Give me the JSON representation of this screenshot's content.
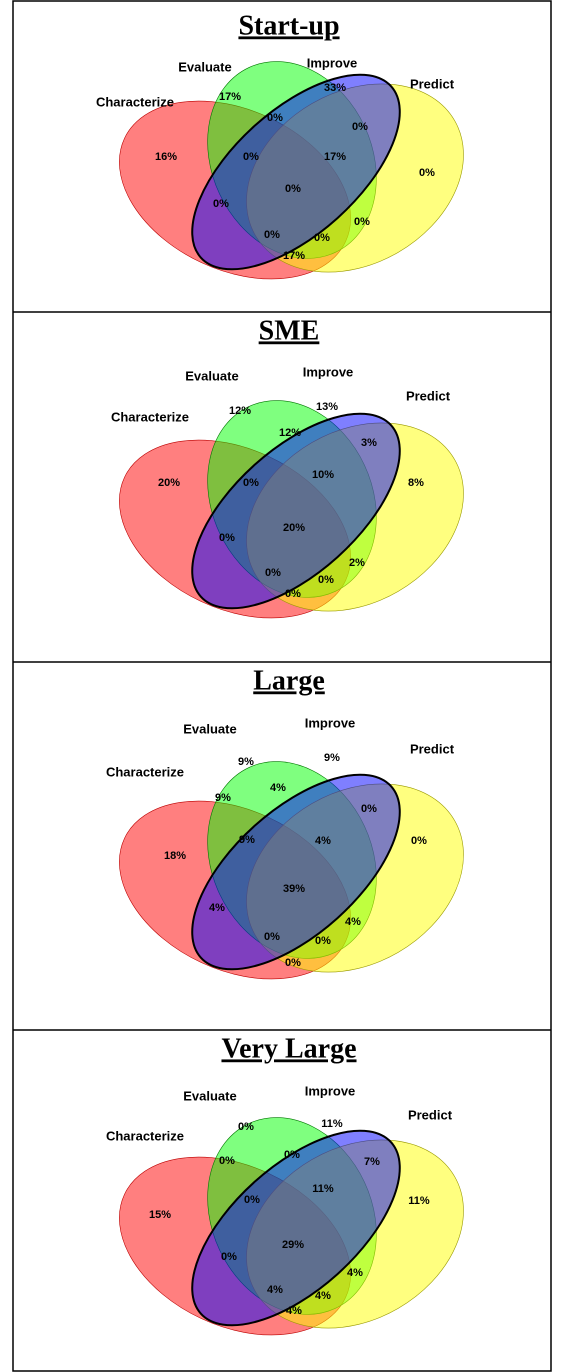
{
  "panels": [
    {
      "title": "Start-up",
      "sets": [
        "Characterize",
        "Evaluate",
        "Improve",
        "Predict"
      ],
      "regions": [
        "17%",
        "33%",
        "0%",
        "0%",
        "16%",
        "0%",
        "17%",
        "0%",
        "0%",
        "0%",
        "0%",
        "0%",
        "0%",
        "17%"
      ]
    },
    {
      "title": "SME",
      "sets": [
        "Characterize",
        "Evaluate",
        "Improve",
        "Predict"
      ],
      "regions": [
        "12%",
        "13%",
        "12%",
        "3%",
        "20%",
        "0%",
        "10%",
        "8%",
        "20%",
        "0%",
        "2%",
        "0%",
        "0%",
        "0%"
      ]
    },
    {
      "title": "Large",
      "sets": [
        "Characterize",
        "Evaluate",
        "Improve",
        "Predict"
      ],
      "regions": [
        "9%",
        "9%",
        "4%",
        "9%",
        "0%",
        "9%",
        "4%",
        "0%",
        "18%",
        "39%",
        "4%",
        "4%",
        "0%",
        "0%",
        "0%"
      ]
    },
    {
      "title": "Very Large",
      "sets": [
        "Characterize",
        "Evaluate",
        "Improve",
        "Predict"
      ],
      "regions": [
        "0%",
        "11%",
        "0%",
        "0%",
        "7%",
        "11%",
        "0%",
        "11%",
        "15%",
        "29%",
        "0%",
        "4%",
        "4%",
        "4%",
        "4%"
      ]
    }
  ]
}
